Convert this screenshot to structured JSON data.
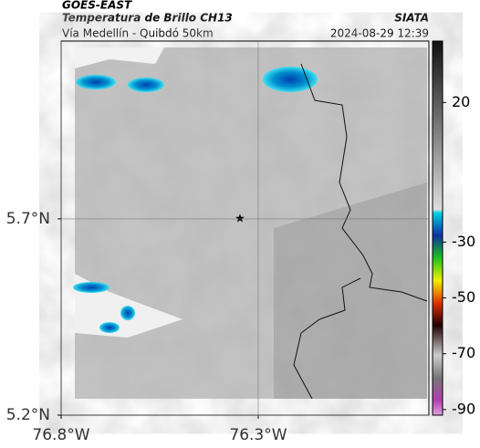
{
  "header": {
    "title": "GOES-EAST",
    "subtitle": "Temperatura de Brillo CH13",
    "source": "SIATA",
    "route": "Vía Medellín - Quibdó 50km",
    "datetime": "2024-08-29 12:39"
  },
  "map": {
    "lonlim": [
      -76.8,
      -75.867
    ],
    "latlim": [
      5.2,
      6.153
    ],
    "lon_ticks": [
      {
        "value": -76.8,
        "label": "76.8°W"
      },
      {
        "value": -76.3,
        "label": "76.3°W"
      }
    ],
    "lat_ticks": [
      {
        "value": 5.7,
        "label": "5.7°N"
      },
      {
        "value": 5.2,
        "label": "5.2°N"
      }
    ]
  },
  "colorbar": {
    "lim": [
      42,
      -92
    ],
    "ticks": [
      20,
      -30,
      -50,
      -70,
      -90
    ]
  }
}
